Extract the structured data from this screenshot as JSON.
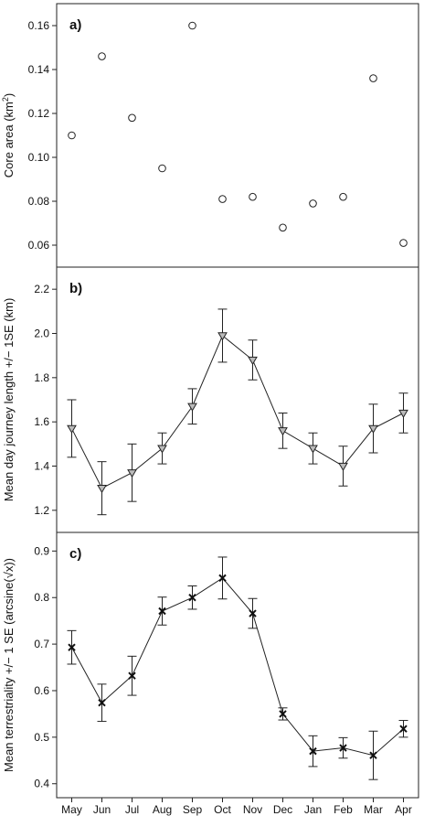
{
  "chart_data": [
    {
      "type": "scatter",
      "panel_label": "a)",
      "ylabel_text": "Core area (km",
      "ylabel_sup": "2",
      "ylabel_close": ")",
      "marker": "circle-open",
      "ylim": [
        0.05,
        0.17
      ],
      "yticks": [
        0.06,
        0.08,
        0.1,
        0.12,
        0.14,
        0.16
      ],
      "ytick_labels": [
        "0.06",
        "0.08",
        "0.10",
        "0.12",
        "0.14",
        "0.16"
      ],
      "categories": [
        "May",
        "Jun",
        "Jul",
        "Aug",
        "Sep",
        "Oct",
        "Nov",
        "Dec",
        "Jan",
        "Feb",
        "Mar",
        "Apr"
      ],
      "values": [
        0.11,
        0.146,
        0.118,
        0.095,
        0.16,
        0.081,
        0.082,
        0.068,
        0.079,
        0.082,
        0.136,
        0.061
      ]
    },
    {
      "type": "line",
      "panel_label": "b)",
      "ylabel": "Mean day journey length +/− 1SE (km)",
      "marker": "triangle-down-open",
      "ylim": [
        1.1,
        2.3
      ],
      "yticks": [
        1.2,
        1.4,
        1.6,
        1.8,
        2.0,
        2.2
      ],
      "ytick_labels": [
        "1.2",
        "1.4",
        "1.6",
        "1.8",
        "2.0",
        "2.2"
      ],
      "categories": [
        "May",
        "Jun",
        "Jul",
        "Aug",
        "Sep",
        "Oct",
        "Nov",
        "Dec",
        "Jan",
        "Feb",
        "Mar",
        "Apr"
      ],
      "values": [
        1.57,
        1.3,
        1.37,
        1.48,
        1.67,
        1.99,
        1.88,
        1.56,
        1.48,
        1.4,
        1.57,
        1.64
      ],
      "se": [
        0.13,
        0.12,
        0.13,
        0.07,
        0.08,
        0.12,
        0.09,
        0.08,
        0.07,
        0.09,
        0.11,
        0.09
      ]
    },
    {
      "type": "line",
      "panel_label": "c)",
      "ylabel": "Mean terrestriality +/− 1 SE (arcsine(√x))",
      "marker": "x",
      "ylim": [
        0.37,
        0.94
      ],
      "yticks": [
        0.4,
        0.5,
        0.6,
        0.7,
        0.8,
        0.9
      ],
      "ytick_labels": [
        "0.4",
        "0.5",
        "0.6",
        "0.7",
        "0.8",
        "0.9"
      ],
      "categories": [
        "May",
        "Jun",
        "Jul",
        "Aug",
        "Sep",
        "Oct",
        "Nov",
        "Dec",
        "Jan",
        "Feb",
        "Mar",
        "Apr"
      ],
      "values": [
        0.693,
        0.574,
        0.632,
        0.771,
        0.8,
        0.842,
        0.766,
        0.55,
        0.47,
        0.477,
        0.461,
        0.518
      ],
      "se": [
        0.036,
        0.04,
        0.042,
        0.03,
        0.025,
        0.045,
        0.032,
        0.013,
        0.033,
        0.022,
        0.052,
        0.018
      ]
    }
  ]
}
